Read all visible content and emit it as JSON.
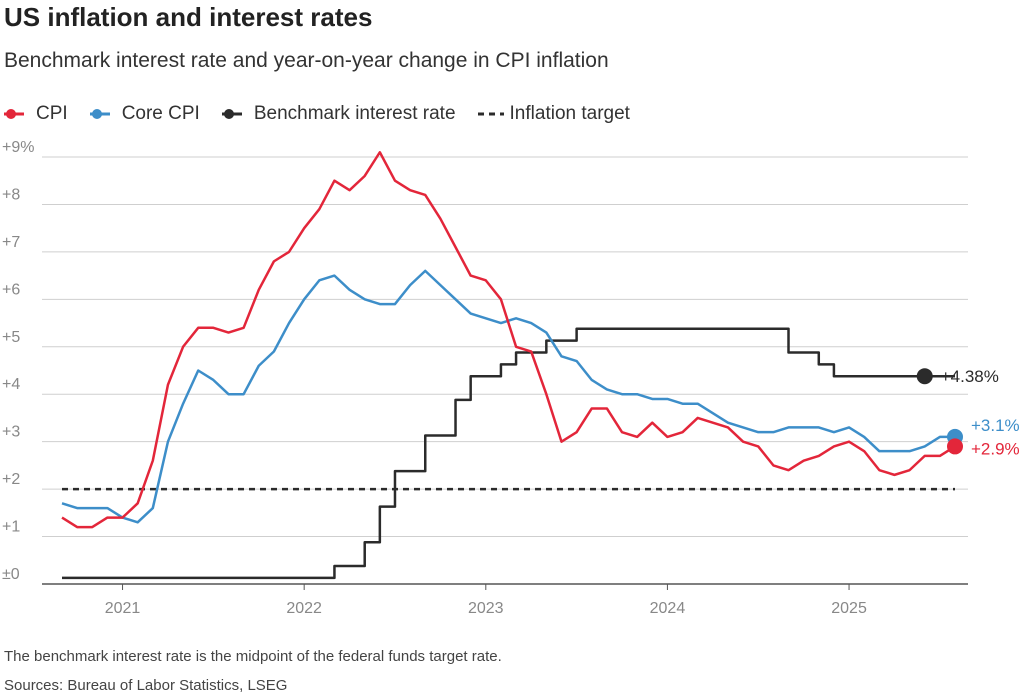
{
  "header": {
    "title": "US inflation and interest rates",
    "subtitle": "Benchmark interest rate and year-on-year change in CPI inflation"
  },
  "legend": [
    {
      "label": "CPI",
      "color": "#e3263a",
      "style": "dot-line"
    },
    {
      "label": "Core CPI",
      "color": "#3d8ec9",
      "style": "dot-line"
    },
    {
      "label": "Benchmark interest rate",
      "color": "#2b2b2b",
      "style": "dot-line"
    },
    {
      "label": "Inflation target",
      "color": "#2b2b2b",
      "style": "dashed"
    }
  ],
  "footer": {
    "note": "The benchmark interest rate is the midpoint of the federal funds target rate.",
    "source": "Sources: Bureau of Labor Statistics, LSEG"
  },
  "chart_data": {
    "type": "line",
    "title": "US inflation and interest rates",
    "subtitle": "Benchmark interest rate and year-on-year change in CPI inflation",
    "y_ticks": [
      {
        "value": 0,
        "label": "±0"
      },
      {
        "value": 1,
        "label": "+1"
      },
      {
        "value": 2,
        "label": "+2"
      },
      {
        "value": 3,
        "label": "+3"
      },
      {
        "value": 4,
        "label": "+4"
      },
      {
        "value": 5,
        "label": "+5"
      },
      {
        "value": 6,
        "label": "+6"
      },
      {
        "value": 7,
        "label": "+7"
      },
      {
        "value": 8,
        "label": "+8"
      },
      {
        "value": 9,
        "label": "+9%"
      }
    ],
    "ylim": [
      0,
      9
    ],
    "xlim": [
      "2020-09",
      "2025-08"
    ],
    "x_ticks": [
      {
        "date": "2021-01",
        "label": "2021"
      },
      {
        "date": "2022-01",
        "label": "2022"
      },
      {
        "date": "2023-01",
        "label": "2023"
      },
      {
        "date": "2024-01",
        "label": "2024"
      },
      {
        "date": "2025-01",
        "label": "2025"
      }
    ],
    "grid": true,
    "legend_position": "top-left",
    "series": [
      {
        "name": "CPI",
        "color": "#e3263a",
        "kind": "line",
        "end_label": "+2.9%",
        "points": [
          [
            "2020-09",
            1.4
          ],
          [
            "2020-10",
            1.2
          ],
          [
            "2020-11",
            1.2
          ],
          [
            "2020-12",
            1.4
          ],
          [
            "2021-01",
            1.4
          ],
          [
            "2021-02",
            1.7
          ],
          [
            "2021-03",
            2.6
          ],
          [
            "2021-04",
            4.2
          ],
          [
            "2021-05",
            5.0
          ],
          [
            "2021-06",
            5.4
          ],
          [
            "2021-07",
            5.4
          ],
          [
            "2021-08",
            5.3
          ],
          [
            "2021-09",
            5.4
          ],
          [
            "2021-10",
            6.2
          ],
          [
            "2021-11",
            6.8
          ],
          [
            "2021-12",
            7.0
          ],
          [
            "2022-01",
            7.5
          ],
          [
            "2022-02",
            7.9
          ],
          [
            "2022-03",
            8.5
          ],
          [
            "2022-04",
            8.3
          ],
          [
            "2022-05",
            8.6
          ],
          [
            "2022-06",
            9.1
          ],
          [
            "2022-07",
            8.5
          ],
          [
            "2022-08",
            8.3
          ],
          [
            "2022-09",
            8.2
          ],
          [
            "2022-10",
            7.7
          ],
          [
            "2022-11",
            7.1
          ],
          [
            "2022-12",
            6.5
          ],
          [
            "2023-01",
            6.4
          ],
          [
            "2023-02",
            6.0
          ],
          [
            "2023-03",
            5.0
          ],
          [
            "2023-04",
            4.9
          ],
          [
            "2023-05",
            4.0
          ],
          [
            "2023-06",
            3.0
          ],
          [
            "2023-07",
            3.2
          ],
          [
            "2023-08",
            3.7
          ],
          [
            "2023-09",
            3.7
          ],
          [
            "2023-10",
            3.2
          ],
          [
            "2023-11",
            3.1
          ],
          [
            "2023-12",
            3.4
          ],
          [
            "2024-01",
            3.1
          ],
          [
            "2024-02",
            3.2
          ],
          [
            "2024-03",
            3.5
          ],
          [
            "2024-04",
            3.4
          ],
          [
            "2024-05",
            3.3
          ],
          [
            "2024-06",
            3.0
          ],
          [
            "2024-07",
            2.9
          ],
          [
            "2024-08",
            2.5
          ],
          [
            "2024-09",
            2.4
          ],
          [
            "2024-10",
            2.6
          ],
          [
            "2024-11",
            2.7
          ],
          [
            "2024-12",
            2.9
          ],
          [
            "2025-01",
            3.0
          ],
          [
            "2025-02",
            2.8
          ],
          [
            "2025-03",
            2.4
          ],
          [
            "2025-04",
            2.3
          ],
          [
            "2025-05",
            2.4
          ],
          [
            "2025-06",
            2.7
          ],
          [
            "2025-07",
            2.7
          ],
          [
            "2025-08",
            2.9
          ]
        ]
      },
      {
        "name": "Core CPI",
        "color": "#3d8ec9",
        "kind": "line",
        "end_label": "+3.1%",
        "points": [
          [
            "2020-09",
            1.7
          ],
          [
            "2020-10",
            1.6
          ],
          [
            "2020-11",
            1.6
          ],
          [
            "2020-12",
            1.6
          ],
          [
            "2021-01",
            1.4
          ],
          [
            "2021-02",
            1.3
          ],
          [
            "2021-03",
            1.6
          ],
          [
            "2021-04",
            3.0
          ],
          [
            "2021-05",
            3.8
          ],
          [
            "2021-06",
            4.5
          ],
          [
            "2021-07",
            4.3
          ],
          [
            "2021-08",
            4.0
          ],
          [
            "2021-09",
            4.0
          ],
          [
            "2021-10",
            4.6
          ],
          [
            "2021-11",
            4.9
          ],
          [
            "2021-12",
            5.5
          ],
          [
            "2022-01",
            6.0
          ],
          [
            "2022-02",
            6.4
          ],
          [
            "2022-03",
            6.5
          ],
          [
            "2022-04",
            6.2
          ],
          [
            "2022-05",
            6.0
          ],
          [
            "2022-06",
            5.9
          ],
          [
            "2022-07",
            5.9
          ],
          [
            "2022-08",
            6.3
          ],
          [
            "2022-09",
            6.6
          ],
          [
            "2022-10",
            6.3
          ],
          [
            "2022-11",
            6.0
          ],
          [
            "2022-12",
            5.7
          ],
          [
            "2023-01",
            5.6
          ],
          [
            "2023-02",
            5.5
          ],
          [
            "2023-03",
            5.6
          ],
          [
            "2023-04",
            5.5
          ],
          [
            "2023-05",
            5.3
          ],
          [
            "2023-06",
            4.8
          ],
          [
            "2023-07",
            4.7
          ],
          [
            "2023-08",
            4.3
          ],
          [
            "2023-09",
            4.1
          ],
          [
            "2023-10",
            4.0
          ],
          [
            "2023-11",
            4.0
          ],
          [
            "2023-12",
            3.9
          ],
          [
            "2024-01",
            3.9
          ],
          [
            "2024-02",
            3.8
          ],
          [
            "2024-03",
            3.8
          ],
          [
            "2024-04",
            3.6
          ],
          [
            "2024-05",
            3.4
          ],
          [
            "2024-06",
            3.3
          ],
          [
            "2024-07",
            3.2
          ],
          [
            "2024-08",
            3.2
          ],
          [
            "2024-09",
            3.3
          ],
          [
            "2024-10",
            3.3
          ],
          [
            "2024-11",
            3.3
          ],
          [
            "2024-12",
            3.2
          ],
          [
            "2025-01",
            3.3
          ],
          [
            "2025-02",
            3.1
          ],
          [
            "2025-03",
            2.8
          ],
          [
            "2025-04",
            2.8
          ],
          [
            "2025-05",
            2.8
          ],
          [
            "2025-06",
            2.9
          ],
          [
            "2025-07",
            3.1
          ],
          [
            "2025-08",
            3.1
          ]
        ]
      },
      {
        "name": "Benchmark interest rate",
        "color": "#2b2b2b",
        "kind": "step",
        "end_label": "+4.38%",
        "points": [
          [
            "2020-09",
            0.13
          ],
          [
            "2022-03",
            0.38
          ],
          [
            "2022-05",
            0.88
          ],
          [
            "2022-06",
            1.63
          ],
          [
            "2022-07",
            2.38
          ],
          [
            "2022-09",
            3.13
          ],
          [
            "2022-11",
            3.88
          ],
          [
            "2022-12",
            4.38
          ],
          [
            "2023-02",
            4.63
          ],
          [
            "2023-03",
            4.88
          ],
          [
            "2023-05",
            5.13
          ],
          [
            "2023-07",
            5.38
          ],
          [
            "2024-09",
            4.88
          ],
          [
            "2024-11",
            4.63
          ],
          [
            "2024-12",
            4.38
          ],
          [
            "2025-08",
            4.38
          ]
        ]
      },
      {
        "name": "Inflation target",
        "color": "#2b2b2b",
        "kind": "dashed",
        "points": [
          [
            "2020-09",
            2.0
          ],
          [
            "2025-08",
            2.0
          ]
        ]
      }
    ]
  }
}
